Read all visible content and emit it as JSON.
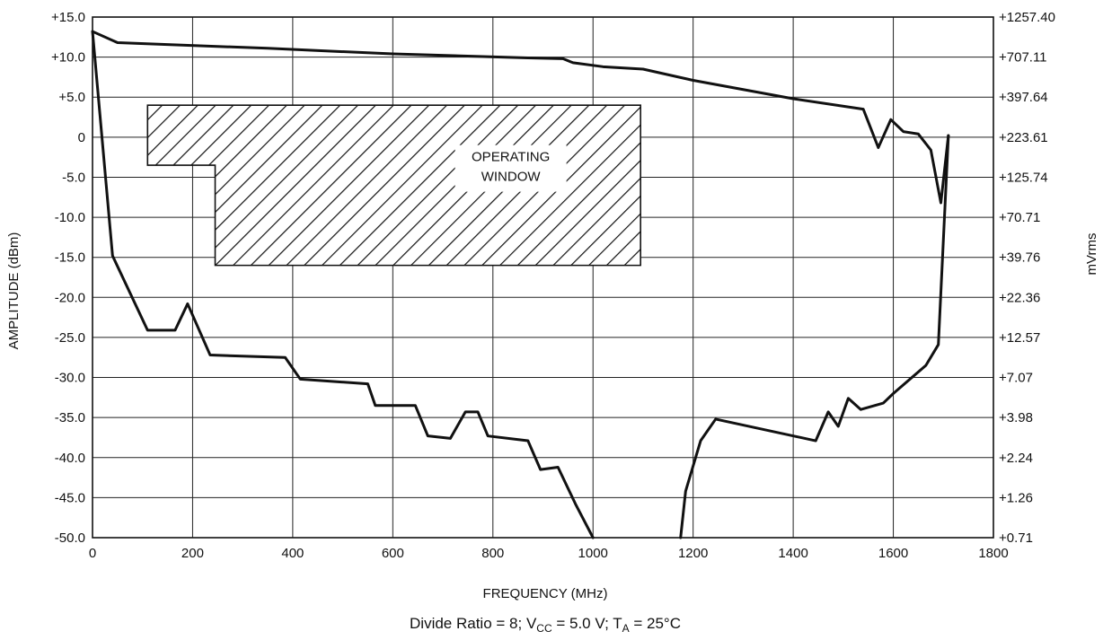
{
  "chart_data": {
    "type": "line",
    "xlabel": "FREQUENCY (MHz)",
    "ylabel": "AMPLITUDE (dBm)",
    "ylabel_right": "mVrms",
    "xlim": [
      0,
      1800
    ],
    "ylim": [
      -50,
      15
    ],
    "grid": true,
    "x_ticks": [
      "0",
      "200",
      "400",
      "600",
      "800",
      "1000",
      "1200",
      "1400",
      "1600",
      "1800"
    ],
    "x_tick_values": [
      0,
      200,
      400,
      600,
      800,
      1000,
      1200,
      1400,
      1600,
      1800
    ],
    "y_ticks": [
      "+15.0",
      "+10.0",
      "+5.0",
      "0",
      "-5.0",
      "-10.0",
      "-15.0",
      "-20.0",
      "-25.0",
      "-30.0",
      "-35.0",
      "-40.0",
      "-45.0",
      "-50.0"
    ],
    "y_tick_values": [
      15,
      10,
      5,
      0,
      -5,
      -10,
      -15,
      -20,
      -25,
      -30,
      -35,
      -40,
      -45,
      -50
    ],
    "y2_ticks": [
      "+1257.40",
      "+707.11",
      "+397.64",
      "+223.61",
      "+125.74",
      "+70.71",
      "+39.76",
      "+22.36",
      "+12.57",
      "+7.07",
      "+3.98",
      "+2.24",
      "+1.26",
      "+0.71"
    ],
    "caption": {
      "prefix": "Divide Ratio = 8; V",
      "vcc_sub": "CC",
      "middle": " = 5.0 V; T",
      "ta_sub": "A",
      "suffix": " = 25°C"
    },
    "operating_window": {
      "label_line1": "OPERATING",
      "label_line2": "WINDOW",
      "outline": [
        [
          110,
          4
        ],
        [
          1095,
          4
        ],
        [
          1095,
          -16
        ],
        [
          245,
          -16
        ],
        [
          245,
          -3.5
        ],
        [
          110,
          -3.5
        ]
      ]
    },
    "series": [
      {
        "points": [
          [
            0,
            13.2
          ],
          [
            50,
            11.8
          ],
          [
            350,
            11.1
          ],
          [
            600,
            10.4
          ],
          [
            870,
            9.9
          ],
          [
            940,
            9.8
          ],
          [
            960,
            9.3
          ],
          [
            1020,
            8.8
          ],
          [
            1100,
            8.5
          ],
          [
            1200,
            7.1
          ],
          [
            1400,
            4.8
          ],
          [
            1540,
            3.5
          ],
          [
            1570,
            -1.3
          ],
          [
            1595,
            2.2
          ],
          [
            1620,
            0.7
          ],
          [
            1650,
            0.4
          ],
          [
            1675,
            -1.6
          ],
          [
            1695,
            -8.2
          ],
          [
            1710,
            0.2
          ]
        ]
      },
      {
        "points": [
          [
            0,
            13.2
          ],
          [
            40,
            -14.8
          ],
          [
            110,
            -24.1
          ],
          [
            165,
            -24.1
          ],
          [
            190,
            -20.8
          ],
          [
            235,
            -27.2
          ],
          [
            385,
            -27.5
          ],
          [
            415,
            -30.2
          ],
          [
            550,
            -30.8
          ],
          [
            565,
            -33.5
          ],
          [
            645,
            -33.5
          ],
          [
            670,
            -37.3
          ],
          [
            715,
            -37.6
          ],
          [
            745,
            -34.3
          ],
          [
            770,
            -34.3
          ],
          [
            790,
            -37.3
          ],
          [
            870,
            -37.9
          ],
          [
            895,
            -41.5
          ],
          [
            930,
            -41.2
          ],
          [
            965,
            -45.8
          ],
          [
            1000,
            -50
          ]
        ]
      },
      {
        "points": [
          [
            1175,
            -50
          ],
          [
            1185,
            -44.2
          ],
          [
            1215,
            -37.9
          ],
          [
            1245,
            -35.2
          ],
          [
            1445,
            -37.9
          ],
          [
            1470,
            -34.3
          ],
          [
            1490,
            -36.1
          ],
          [
            1510,
            -32.6
          ],
          [
            1535,
            -34.0
          ],
          [
            1580,
            -33.2
          ],
          [
            1600,
            -32.0
          ],
          [
            1665,
            -28.5
          ],
          [
            1690,
            -25.9
          ],
          [
            1710,
            0.2
          ]
        ]
      }
    ]
  }
}
